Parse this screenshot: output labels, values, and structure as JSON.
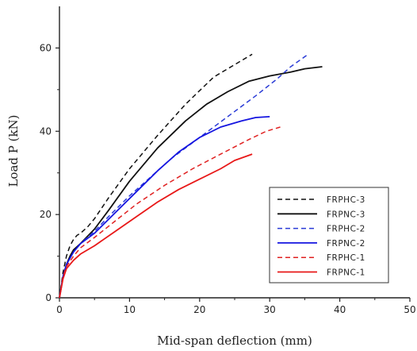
{
  "chart_data": {
    "type": "line",
    "title": "",
    "xlabel": "Mid-span deflection (mm)",
    "ylabel": "Load P (kN)",
    "xlim": [
      0,
      50
    ],
    "ylim": [
      0,
      70
    ],
    "xticks": [
      0,
      10,
      20,
      30,
      40,
      50
    ],
    "yticks": [
      0,
      20,
      40,
      60
    ],
    "grid": false,
    "legend_position": "lower-right",
    "series": [
      {
        "name": "FRPHC-3",
        "color": "#111111",
        "dash": "dashed",
        "x": [
          0,
          0.5,
          1.0,
          1.5,
          2,
          2.5,
          3,
          4,
          5,
          7,
          10,
          14,
          18,
          22,
          25,
          27.5
        ],
        "y": [
          0,
          6,
          10,
          12.5,
          14,
          15,
          15.5,
          17,
          19,
          24,
          31,
          39,
          46.5,
          53,
          56,
          58.5
        ]
      },
      {
        "name": "FRPNC-3",
        "color": "#111111",
        "dash": "solid",
        "x": [
          0,
          0.5,
          1.0,
          1.5,
          2,
          3,
          5,
          7,
          10,
          14,
          18,
          21,
          24,
          27,
          30,
          33,
          35,
          37.5
        ],
        "y": [
          0,
          5,
          8,
          10,
          11.5,
          13,
          16.5,
          21,
          28,
          36,
          42.5,
          46.5,
          49.5,
          52,
          53.3,
          54.2,
          55,
          55.5
        ]
      },
      {
        "name": "FRPHC-2",
        "color": "#2a3bd6",
        "dash": "dashed",
        "x": [
          0,
          0.5,
          1.0,
          2,
          3,
          5,
          7,
          10,
          13,
          16,
          20,
          24,
          28,
          31,
          33,
          35.5
        ],
        "y": [
          0,
          5,
          8,
          11,
          13,
          16,
          19.5,
          24.5,
          29,
          33.5,
          38.5,
          43.5,
          48.5,
          52.5,
          55.5,
          58.5
        ]
      },
      {
        "name": "FRPNC-2",
        "color": "#1515e0",
        "dash": "solid",
        "x": [
          0,
          0.5,
          1.0,
          2,
          3,
          5,
          8,
          11,
          14,
          17,
          20,
          23,
          26,
          28,
          30
        ],
        "y": [
          0,
          5,
          8,
          11,
          13,
          15.5,
          20.5,
          25.5,
          30.5,
          35,
          38.5,
          41,
          42.5,
          43.3,
          43.5
        ]
      },
      {
        "name": "FRPHC-1",
        "color": "#e02020",
        "dash": "dashed",
        "x": [
          0,
          0.5,
          1.0,
          2,
          3,
          5,
          8,
          11,
          15,
          19,
          23,
          27,
          29.5,
          31.5
        ],
        "y": [
          0,
          5,
          7.5,
          10,
          12,
          14.5,
          18.5,
          22.5,
          27,
          31,
          34.5,
          38,
          40,
          41
        ]
      },
      {
        "name": "FRPNC-1",
        "color": "#e81818",
        "dash": "solid",
        "x": [
          0,
          0.5,
          1.0,
          2,
          3,
          5,
          8,
          11,
          14,
          17,
          20,
          23,
          25,
          27.5
        ],
        "y": [
          0,
          4.5,
          7,
          9,
          10.5,
          12.5,
          16,
          19.5,
          23,
          26,
          28.5,
          31,
          33,
          34.5
        ]
      }
    ]
  }
}
